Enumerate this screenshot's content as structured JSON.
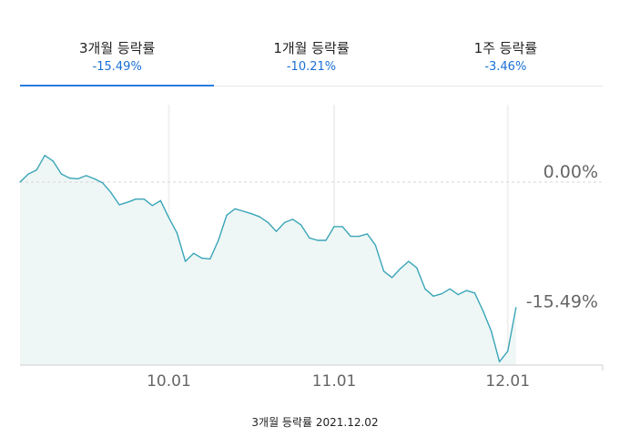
{
  "tabs": [
    {
      "label": "3개월 등락률",
      "value": "-15.49%",
      "active": true
    },
    {
      "label": "1개월 등락률",
      "value": "-10.21%",
      "active": false
    },
    {
      "label": "1주 등락률",
      "value": "-3.46%",
      "active": false
    }
  ],
  "caption": "3개월 등락률 2021.12.02",
  "colors": {
    "line": "#3aa5b8",
    "fill": "#eef7f5",
    "accent": "#2a7be0",
    "value_text": "#1a6fd6"
  },
  "chart_data": {
    "type": "area",
    "title": "",
    "xlabel": "",
    "ylabel": "",
    "ylim": [
      -22.5,
      4.5
    ],
    "x_ticks": [
      {
        "label": "10.01",
        "index": 18
      },
      {
        "label": "11.01",
        "index": 38
      },
      {
        "label": "12.01",
        "index": 59
      }
    ],
    "reference_labels": [
      {
        "label": "0.00%",
        "value": 0
      },
      {
        "label": "-15.49%",
        "value": -15.49
      }
    ],
    "reference_line": 0,
    "series": [
      {
        "values": [
          0,
          1,
          1.5,
          3.3,
          2.6,
          1,
          0.5,
          0.4,
          0.8,
          0.4,
          -0.1,
          -1.3,
          -2.8,
          -2.5,
          -2.1,
          -2.1,
          -2.9,
          -2.3,
          -4.4,
          -6.3,
          -9.8,
          -8.8,
          -9.4,
          -9.5,
          -7.2,
          -4.1,
          -3.3,
          -3.6,
          -3.9,
          -4.3,
          -5.0,
          -6.1,
          -5.0,
          -4.6,
          -5.3,
          -6.9,
          -7.2,
          -7.2,
          -5.5,
          -5.5,
          -6.7,
          -6.7,
          -6.4,
          -7.8,
          -11.0,
          -11.8,
          -10.7,
          -9.8,
          -10.6,
          -13.2,
          -14.1,
          -13.8,
          -13.2,
          -13.9,
          -13.4,
          -13.7,
          -15.9,
          -18.4,
          -22.2,
          -20.9,
          -15.49
        ]
      }
    ]
  }
}
